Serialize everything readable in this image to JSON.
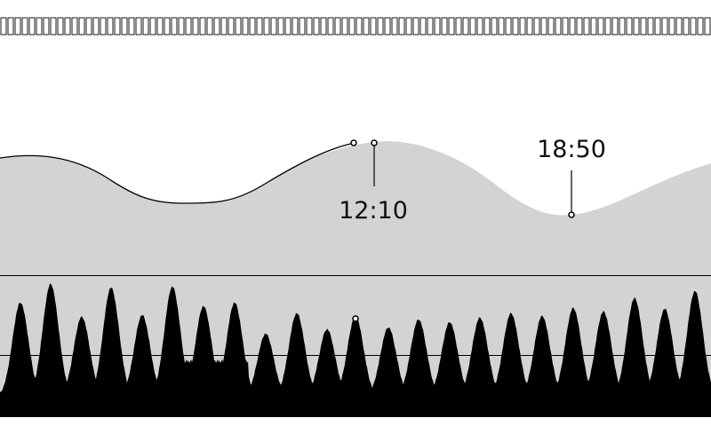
{
  "colors": {
    "background": "#ffffff",
    "area_fill": "#d3d3d3",
    "ink": "#000000"
  },
  "top_strip": {
    "name": "timeline-ruler",
    "tick_count": 100
  },
  "upper_panel": {
    "markers": [
      {
        "name": "marker-a",
        "label": ""
      },
      {
        "name": "marker-b",
        "label": "12:10"
      },
      {
        "name": "marker-c",
        "label": "18:50"
      }
    ]
  },
  "lower_panel": {
    "peak_count": 23,
    "cursor_marker": {
      "name": "waveform-cursor-marker",
      "label": ""
    }
  }
}
